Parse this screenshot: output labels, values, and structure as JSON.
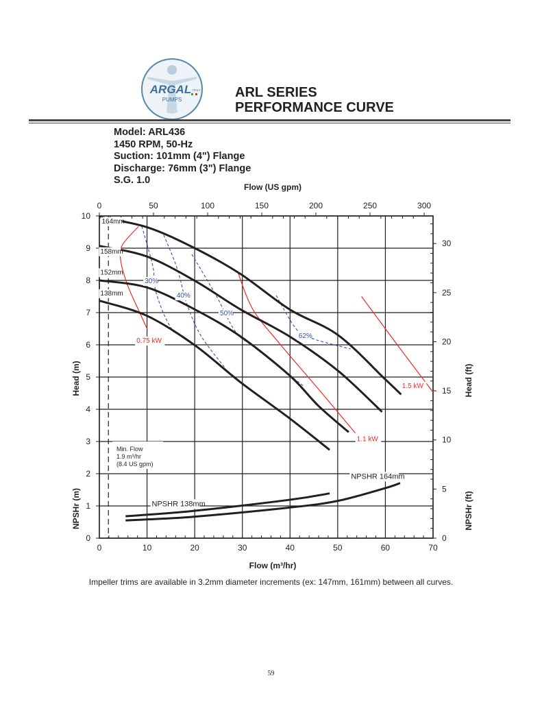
{
  "header": {
    "logo_text": "ARGAL PUMPS ITALY",
    "title_line1": "ARL SERIES",
    "title_line2": "PERFORMANCE CURVE"
  },
  "specs": {
    "model": "Model: ARL436",
    "speed": "1450 RPM, 50-Hz",
    "suction": "Suction: 101mm (4\") Flange",
    "discharge": "Discharge: 76mm (3\") Flange",
    "sg": "S.G. 1.0"
  },
  "footer": {
    "note": "Impeller trims are available in 3.2mm diameter increments (ex: 147mm, 161mm) between all curves.",
    "page_number": "59"
  },
  "chart_data": {
    "type": "line",
    "xlabel": "Flow (m³/hr)",
    "x2label": "Flow (US gpm)",
    "ylabel": "Head (m)",
    "ylabel_lower": "NPSHr (m)",
    "y2label": "Head (ft)",
    "y2label_lower": "NPSHr (ft)",
    "xlim": [
      0,
      70
    ],
    "ylim": [
      0,
      10
    ],
    "x2lim": [
      0,
      308
    ],
    "y2lim": [
      0,
      32.8
    ],
    "xticks": [
      0,
      10,
      20,
      30,
      40,
      50,
      60,
      70
    ],
    "yticks": [
      0,
      1,
      2,
      3,
      4,
      5,
      6,
      7,
      8,
      9,
      10
    ],
    "x2ticks": [
      0,
      50,
      100,
      150,
      200,
      250,
      300
    ],
    "y2ticks": [
      0,
      5,
      10,
      15,
      20,
      25,
      30
    ],
    "grid": true,
    "colors": {
      "curve": "#231f20",
      "efficiency": "#2e4fb5",
      "power": "#ee2a24",
      "grid": "#231f20"
    },
    "head_curves": [
      {
        "name": "164mm",
        "points": [
          [
            0,
            9.96
          ],
          [
            10,
            9.65
          ],
          [
            20,
            9.0
          ],
          [
            29.6,
            8.2
          ],
          [
            39.9,
            7.1
          ],
          [
            50.1,
            6.3
          ],
          [
            59.9,
            4.94
          ],
          [
            63.3,
            4.46
          ]
        ]
      },
      {
        "name": "158mm",
        "points": [
          [
            0,
            9.07
          ],
          [
            10,
            8.74
          ],
          [
            20,
            7.99
          ],
          [
            29.6,
            7.1
          ],
          [
            39.9,
            6.26
          ],
          [
            50.1,
            5.19
          ],
          [
            59.3,
            3.92
          ]
        ]
      },
      {
        "name": "152mm",
        "points": [
          [
            0,
            8.0
          ],
          [
            10,
            7.78
          ],
          [
            20,
            7.1
          ],
          [
            29.6,
            6.26
          ],
          [
            39.9,
            5.05
          ],
          [
            46,
            4.1
          ],
          [
            52.3,
            3.29
          ]
        ]
      },
      {
        "name": "138mm",
        "points": [
          [
            0,
            7.37
          ],
          [
            10,
            6.9
          ],
          [
            20,
            5.99
          ],
          [
            29.6,
            4.84
          ],
          [
            39.9,
            3.72
          ],
          [
            48.3,
            2.74
          ]
        ]
      }
    ],
    "efficiency_curves": [
      {
        "name": "30%",
        "points": [
          [
            8.9,
            9.68
          ],
          [
            11.2,
            8.45
          ],
          [
            11.7,
            7.74
          ],
          [
            13.5,
            6.96
          ],
          [
            15.5,
            6.4
          ]
        ]
      },
      {
        "name": "40%",
        "points": [
          [
            13.5,
            9.41
          ],
          [
            16.3,
            8.38
          ],
          [
            18.4,
            7.25
          ],
          [
            21.4,
            6.26
          ],
          [
            26.5,
            5.26
          ]
        ]
      },
      {
        "name": "50%",
        "points": [
          [
            19.4,
            8.81
          ],
          [
            24.5,
            7.53
          ],
          [
            28.6,
            6.4
          ],
          [
            32.7,
            5.9
          ],
          [
            43,
            4.7
          ]
        ]
      },
      {
        "name": "62%",
        "points": [
          [
            37.1,
            7.53
          ],
          [
            41.4,
            6.47
          ],
          [
            45,
            6.18
          ],
          [
            52.7,
            5.87
          ]
        ]
      }
    ],
    "power_curves": [
      {
        "name": "0.75 kW",
        "points": [
          [
            8.2,
            9.67
          ],
          [
            4.8,
            9.09
          ],
          [
            4.5,
            8.6
          ],
          [
            6,
            7.82
          ],
          [
            8.6,
            6.96
          ],
          [
            10.1,
            6.47
          ]
        ]
      },
      {
        "name": "1.1 kW",
        "points": [
          [
            29.1,
            8.23
          ],
          [
            32.2,
            7.1
          ],
          [
            37.8,
            6.04
          ],
          [
            46,
            4.62
          ],
          [
            53.7,
            3.26
          ]
        ]
      },
      {
        "name": "1.5 kW",
        "points": [
          [
            55,
            7.5
          ],
          [
            62.5,
            6.0
          ],
          [
            70,
            4.53
          ]
        ]
      }
    ],
    "npshr_curves": [
      {
        "name": "NPSHR 164mm",
        "points": [
          [
            5.5,
            0.55
          ],
          [
            19.4,
            0.66
          ],
          [
            39.9,
            0.95
          ],
          [
            50.1,
            1.16
          ],
          [
            59.9,
            1.55
          ],
          [
            63.1,
            1.71
          ]
        ]
      },
      {
        "name": "NPSHR 138mm",
        "points": [
          [
            5.5,
            0.68
          ],
          [
            19.4,
            0.84
          ],
          [
            39.9,
            1.19
          ],
          [
            48.3,
            1.39
          ]
        ]
      }
    ],
    "min_flow": {
      "value": 1.9,
      "label1": "Min. Flow",
      "label2": "1.9 m³/hr",
      "label3": "(8.4 US gpm)"
    }
  }
}
